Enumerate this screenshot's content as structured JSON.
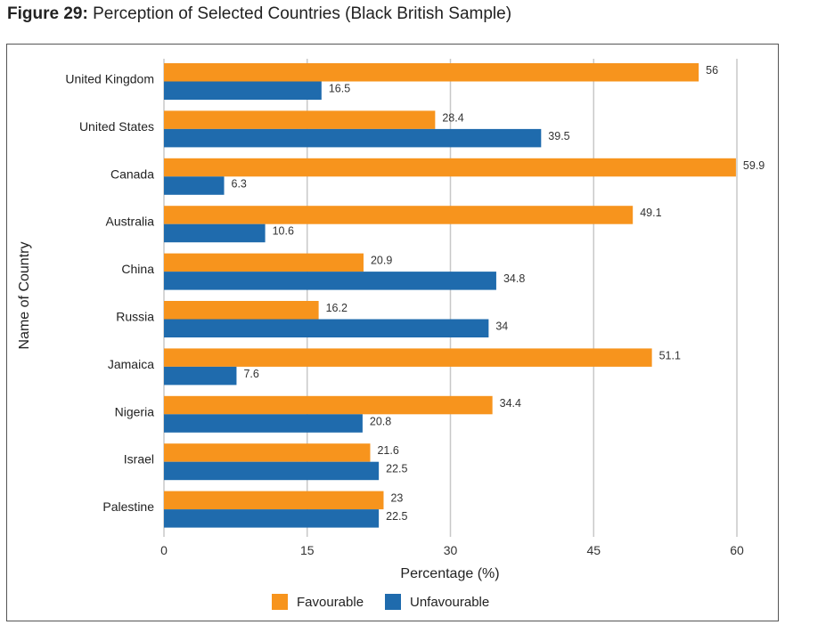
{
  "figure": {
    "number_label": "Figure 29:",
    "title": "Perception of Selected Countries (Black British Sample)"
  },
  "chart_data": {
    "type": "bar",
    "orientation": "horizontal",
    "categories": [
      "United Kingdom",
      "United States",
      "Canada",
      "Australia",
      "China",
      "Russia",
      "Jamaica",
      "Nigeria",
      "Israel",
      "Palestine"
    ],
    "series": [
      {
        "name": "Favourable",
        "color": "#F7941D",
        "values": [
          56,
          28.4,
          59.9,
          49.1,
          20.9,
          16.2,
          51.1,
          34.4,
          21.6,
          23
        ],
        "labels": [
          "56",
          "28.4",
          "59.9",
          "49.1",
          "20.9",
          "16.2",
          "51.1",
          "34.4",
          "21.6",
          "23"
        ]
      },
      {
        "name": "Unfavourable",
        "color": "#1F6BAD",
        "values": [
          16.5,
          39.5,
          6.3,
          10.6,
          34.8,
          34,
          7.6,
          20.8,
          22.5,
          22.5
        ],
        "labels": [
          "16.5",
          "39.5",
          "6.3",
          "10.6",
          "34.8",
          "34",
          "7.6",
          "20.8",
          "22.5",
          "22.5"
        ]
      }
    ],
    "xlabel": "Percentage (%)",
    "ylabel": "Name of Country",
    "xlim": [
      0,
      60
    ],
    "xticks": [
      0,
      15,
      30,
      45,
      60
    ],
    "xtick_labels": [
      "0",
      "15",
      "30",
      "45",
      "60"
    ],
    "grid": "vertical",
    "legend": "bottom-center"
  }
}
